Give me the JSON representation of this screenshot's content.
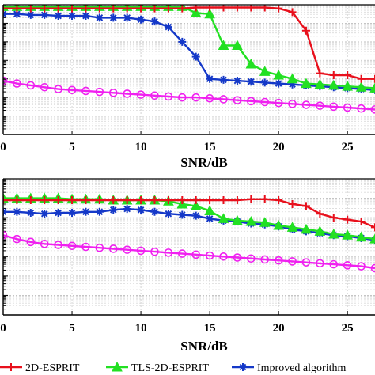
{
  "chart_data": [
    {
      "type": "line",
      "title": "",
      "xlabel": "SNR/dB",
      "ylabel": "",
      "xlim": [
        0,
        27
      ],
      "ylim": [
        0,
        7
      ],
      "x_ticks": [
        0,
        5,
        10,
        15,
        20,
        25
      ],
      "grid": true,
      "x": [
        0,
        1,
        2,
        3,
        4,
        5,
        6,
        7,
        8,
        9,
        10,
        11,
        12,
        13,
        14,
        15,
        16,
        17,
        18,
        19,
        20,
        21,
        22,
        23,
        24,
        25,
        26,
        27
      ],
      "series": [
        {
          "name": "2D-ESPRIT",
          "color": "#e8101c",
          "marker": "plus",
          "values": [
            6.8,
            6.8,
            6.8,
            6.8,
            6.8,
            6.8,
            6.8,
            6.8,
            6.8,
            6.8,
            6.8,
            6.8,
            6.8,
            6.8,
            6.85,
            6.85,
            6.85,
            6.85,
            6.85,
            6.85,
            6.8,
            6.6,
            5.6,
            3.3,
            3.2,
            3.2,
            3.0,
            3.0
          ]
        },
        {
          "name": "TLS-2D-ESPRIT",
          "color": "#22e022",
          "marker": "triangle",
          "values": [
            6.9,
            6.9,
            6.9,
            6.9,
            6.9,
            6.9,
            6.9,
            6.9,
            6.9,
            6.9,
            6.9,
            6.9,
            6.9,
            6.9,
            6.55,
            6.5,
            4.8,
            4.8,
            3.8,
            3.4,
            3.2,
            3.0,
            2.75,
            2.7,
            2.65,
            2.6,
            2.55,
            2.5
          ]
        },
        {
          "name": "Improved algorithm",
          "color": "#1438c8",
          "marker": "asterisk",
          "values": [
            6.5,
            6.5,
            6.45,
            6.45,
            6.4,
            6.4,
            6.4,
            6.3,
            6.3,
            6.3,
            6.2,
            6.1,
            5.8,
            5.0,
            4.2,
            3.0,
            2.95,
            2.9,
            2.85,
            2.8,
            2.75,
            2.7,
            2.65,
            2.6,
            2.55,
            2.5,
            2.45,
            2.4
          ]
        },
        {
          "name": "",
          "color": "#f020f0",
          "marker": "circle",
          "values": [
            2.9,
            2.75,
            2.65,
            2.55,
            2.45,
            2.4,
            2.35,
            2.3,
            2.25,
            2.2,
            2.15,
            2.1,
            2.05,
            2.0,
            2.0,
            1.95,
            1.9,
            1.85,
            1.8,
            1.75,
            1.7,
            1.65,
            1.6,
            1.55,
            1.5,
            1.45,
            1.4,
            1.35
          ]
        }
      ]
    },
    {
      "type": "line",
      "title": "",
      "xlabel": "SNR/dB",
      "ylabel": "",
      "xlim": [
        0,
        27
      ],
      "ylim": [
        0,
        7
      ],
      "x_ticks": [
        0,
        5,
        10,
        15,
        20,
        25
      ],
      "grid": true,
      "x": [
        0,
        1,
        2,
        3,
        4,
        5,
        6,
        7,
        8,
        9,
        10,
        11,
        12,
        13,
        14,
        15,
        16,
        17,
        18,
        19,
        20,
        21,
        22,
        23,
        24,
        25,
        26,
        27
      ],
      "series": [
        {
          "name": "2D-ESPRIT",
          "color": "#e8101c",
          "marker": "plus",
          "values": [
            5.9,
            5.9,
            5.9,
            5.9,
            5.9,
            5.9,
            5.9,
            5.9,
            5.9,
            5.9,
            5.9,
            5.9,
            5.9,
            5.9,
            5.9,
            5.9,
            5.9,
            5.9,
            5.95,
            5.95,
            5.9,
            5.7,
            5.6,
            5.2,
            5.0,
            4.9,
            4.8,
            4.5
          ]
        },
        {
          "name": "TLS-2D-ESPRIT",
          "color": "#22e022",
          "marker": "triangle",
          "values": [
            6.0,
            6.0,
            6.0,
            6.0,
            6.0,
            5.95,
            5.95,
            5.95,
            5.9,
            5.9,
            5.9,
            5.9,
            5.85,
            5.7,
            5.6,
            5.35,
            4.95,
            4.85,
            4.8,
            4.75,
            4.6,
            4.5,
            4.4,
            4.3,
            4.15,
            4.1,
            4.0,
            3.9
          ]
        },
        {
          "name": "Improved algorithm",
          "color": "#1438c8",
          "marker": "asterisk",
          "values": [
            5.3,
            5.3,
            5.25,
            5.2,
            5.25,
            5.25,
            5.3,
            5.3,
            5.4,
            5.45,
            5.4,
            5.3,
            5.2,
            5.15,
            5.1,
            4.95,
            4.85,
            4.8,
            4.7,
            4.65,
            4.55,
            4.4,
            4.3,
            4.2,
            4.1,
            4.05,
            3.95,
            3.85
          ]
        },
        {
          "name": "",
          "color": "#f020f0",
          "marker": "circle",
          "values": [
            4.1,
            3.9,
            3.75,
            3.65,
            3.6,
            3.55,
            3.5,
            3.45,
            3.4,
            3.35,
            3.3,
            3.25,
            3.2,
            3.15,
            3.1,
            3.05,
            3.0,
            2.95,
            2.9,
            2.85,
            2.8,
            2.75,
            2.7,
            2.65,
            2.6,
            2.55,
            2.5,
            2.4
          ]
        }
      ]
    }
  ],
  "legend": {
    "placement": "bottom",
    "items": [
      {
        "label": "2D-ESPRIT",
        "color": "#e8101c",
        "marker": "plus"
      },
      {
        "label": "TLS-2D-ESPRIT",
        "color": "#22e022",
        "marker": "triangle"
      },
      {
        "label": "Improved algorithm",
        "color": "#1438c8",
        "marker": "asterisk"
      }
    ]
  }
}
